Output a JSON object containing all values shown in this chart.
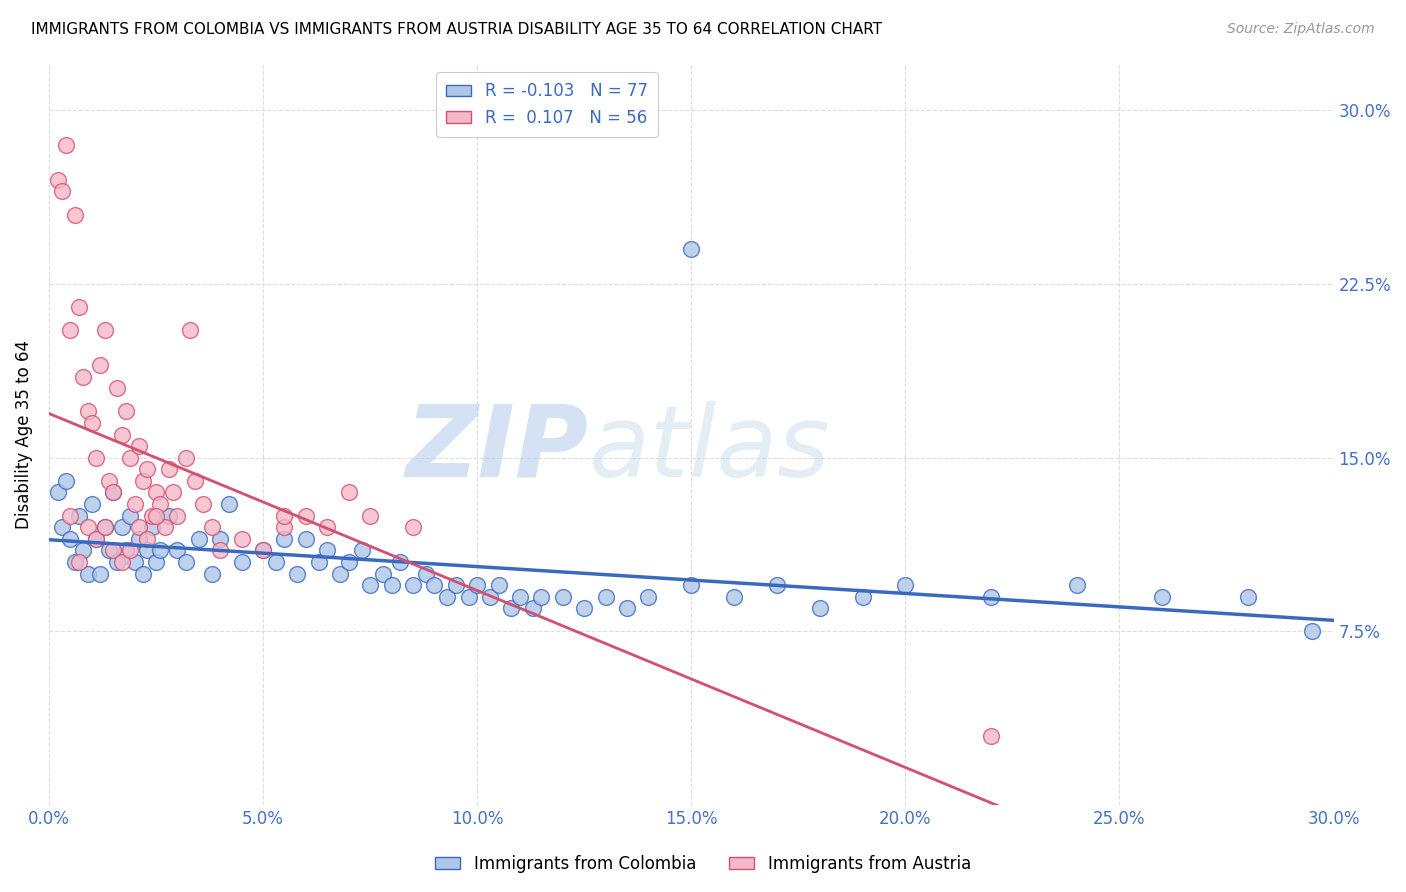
{
  "title": "IMMIGRANTS FROM COLOMBIA VS IMMIGRANTS FROM AUSTRIA DISABILITY AGE 35 TO 64 CORRELATION CHART",
  "source": "Source: ZipAtlas.com",
  "ylabel": "Disability Age 35 to 64",
  "x_tick_labels": [
    "0.0%",
    "5.0%",
    "10.0%",
    "15.0%",
    "20.0%",
    "25.0%",
    "30.0%"
  ],
  "x_tick_values": [
    0.0,
    5.0,
    10.0,
    15.0,
    20.0,
    25.0,
    30.0
  ],
  "y_tick_labels": [
    "7.5%",
    "15.0%",
    "22.5%",
    "30.0%"
  ],
  "y_tick_values": [
    7.5,
    15.0,
    22.5,
    30.0
  ],
  "xlim": [
    0.0,
    30.0
  ],
  "ylim": [
    0.0,
    32.0
  ],
  "colombia_color": "#aec6e8",
  "austria_color": "#f4b8c8",
  "colombia_R": -0.103,
  "colombia_N": 77,
  "austria_R": 0.107,
  "austria_N": 56,
  "legend_label_colombia": "Immigrants from Colombia",
  "legend_label_austria": "Immigrants from Austria",
  "colombia_x": [
    0.2,
    0.3,
    0.4,
    0.5,
    0.6,
    0.7,
    0.8,
    0.9,
    1.0,
    1.1,
    1.2,
    1.3,
    1.4,
    1.5,
    1.6,
    1.7,
    1.8,
    1.9,
    2.0,
    2.1,
    2.2,
    2.3,
    2.4,
    2.5,
    2.6,
    2.8,
    3.0,
    3.2,
    3.5,
    3.8,
    4.0,
    4.2,
    4.5,
    5.0,
    5.3,
    5.5,
    5.8,
    6.0,
    6.3,
    6.5,
    6.8,
    7.0,
    7.3,
    7.5,
    7.8,
    8.0,
    8.2,
    8.5,
    8.8,
    9.0,
    9.3,
    9.5,
    9.8,
    10.0,
    10.3,
    10.5,
    10.8,
    11.0,
    11.3,
    11.5,
    12.0,
    12.5,
    13.0,
    13.5,
    14.0,
    15.0,
    16.0,
    17.0,
    18.0,
    19.0,
    20.0,
    22.0,
    24.0,
    26.0,
    28.0,
    29.5,
    15.0
  ],
  "colombia_y": [
    13.5,
    12.0,
    14.0,
    11.5,
    10.5,
    12.5,
    11.0,
    10.0,
    13.0,
    11.5,
    10.0,
    12.0,
    11.0,
    13.5,
    10.5,
    12.0,
    11.0,
    12.5,
    10.5,
    11.5,
    10.0,
    11.0,
    12.0,
    10.5,
    11.0,
    12.5,
    11.0,
    10.5,
    11.5,
    10.0,
    11.5,
    13.0,
    10.5,
    11.0,
    10.5,
    11.5,
    10.0,
    11.5,
    10.5,
    11.0,
    10.0,
    10.5,
    11.0,
    9.5,
    10.0,
    9.5,
    10.5,
    9.5,
    10.0,
    9.5,
    9.0,
    9.5,
    9.0,
    9.5,
    9.0,
    9.5,
    8.5,
    9.0,
    8.5,
    9.0,
    9.0,
    8.5,
    9.0,
    8.5,
    9.0,
    9.5,
    9.0,
    9.5,
    8.5,
    9.0,
    9.5,
    9.0,
    9.5,
    9.0,
    9.0,
    7.5,
    24.0
  ],
  "austria_x": [
    0.2,
    0.3,
    0.4,
    0.5,
    0.6,
    0.7,
    0.8,
    0.9,
    1.0,
    1.1,
    1.2,
    1.3,
    1.4,
    1.5,
    1.6,
    1.7,
    1.8,
    1.9,
    2.0,
    2.1,
    2.2,
    2.3,
    2.4,
    2.5,
    2.6,
    2.7,
    2.8,
    2.9,
    3.0,
    3.2,
    3.4,
    3.6,
    3.8,
    4.0,
    4.5,
    5.0,
    5.5,
    6.0,
    6.5,
    7.0,
    7.5,
    0.5,
    0.7,
    0.9,
    1.1,
    1.3,
    1.5,
    1.7,
    1.9,
    2.1,
    2.3,
    2.5,
    3.3,
    5.5,
    8.5,
    22.0
  ],
  "austria_y": [
    27.0,
    26.5,
    28.5,
    20.5,
    25.5,
    21.5,
    18.5,
    17.0,
    16.5,
    15.0,
    19.0,
    20.5,
    14.0,
    13.5,
    18.0,
    16.0,
    17.0,
    15.0,
    13.0,
    15.5,
    14.0,
    14.5,
    12.5,
    13.5,
    13.0,
    12.0,
    14.5,
    13.5,
    12.5,
    15.0,
    14.0,
    13.0,
    12.0,
    11.0,
    11.5,
    11.0,
    12.0,
    12.5,
    12.0,
    13.5,
    12.5,
    12.5,
    10.5,
    12.0,
    11.5,
    12.0,
    11.0,
    10.5,
    11.0,
    12.0,
    11.5,
    12.5,
    20.5,
    12.5,
    12.0,
    3.0
  ],
  "watermark_zip": "ZIP",
  "watermark_atlas": "atlas",
  "background_color": "#ffffff",
  "grid_color": "#dddddd",
  "trendline_colombia_color": "#3a6abf",
  "trendline_austria_color": "#d45070"
}
